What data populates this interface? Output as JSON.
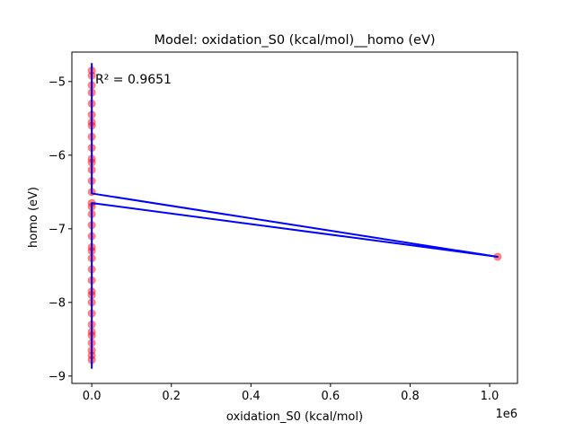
{
  "chart_data": {
    "type": "scatter",
    "title": "Model: oxidation_S0 (kcal/mol)__homo (eV)",
    "xlabel": "oxidation_S0 (kcal/mol)",
    "ylabel": "homo (eV)",
    "x_offset_label": "1e6",
    "annotation": "R² = 0.9651",
    "xlim": [
      -0.05,
      1.07
    ],
    "ylim": [
      -9.1,
      -4.6
    ],
    "x_unit_scale": 1000000,
    "x_ticks": [
      0.0,
      0.2,
      0.4,
      0.6,
      0.8,
      1.0
    ],
    "x_tick_labels": [
      "0.0",
      "0.2",
      "0.4",
      "0.6",
      "0.8",
      "1.0"
    ],
    "y_ticks": [
      -9,
      -8,
      -7,
      -6,
      -5
    ],
    "y_tick_labels": [
      "−9",
      "−8",
      "−7",
      "−6",
      "−5"
    ],
    "grid": false,
    "legend": "none",
    "series": [
      {
        "kind": "points",
        "color": "#ff0000",
        "alpha": 0.5,
        "x": [
          0,
          0,
          0,
          0,
          0,
          0,
          0,
          0,
          0,
          0,
          0,
          0,
          0,
          0,
          0,
          0,
          0,
          0,
          0,
          0,
          0,
          0,
          0,
          0,
          0,
          0,
          0,
          0,
          0,
          0,
          0,
          0,
          0,
          0,
          0,
          0,
          1.02
        ],
        "y": [
          -4.85,
          -4.92,
          -5.15,
          -5.3,
          -5.45,
          -5.6,
          -5.75,
          -5.9,
          -6.05,
          -6.2,
          -6.35,
          -6.5,
          -6.65,
          -6.8,
          -6.95,
          -7.1,
          -7.25,
          -7.4,
          -7.55,
          -7.7,
          -7.85,
          -8.0,
          -8.15,
          -8.3,
          -8.45,
          -8.55,
          -8.65,
          -8.72,
          -8.78,
          -5.05,
          -5.55,
          -6.1,
          -6.7,
          -7.3,
          -7.9,
          -8.4,
          -7.38
        ]
      },
      {
        "kind": "line",
        "color": "#0000ff",
        "x": [
          0,
          0,
          1.02,
          0,
          0
        ],
        "y": [
          -4.75,
          -6.52,
          -7.38,
          -6.65,
          -8.9
        ]
      }
    ]
  }
}
